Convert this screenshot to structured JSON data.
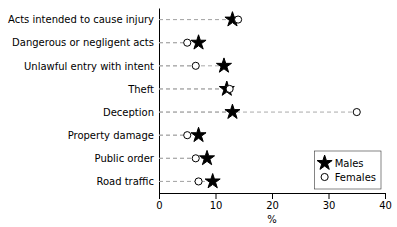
{
  "chart_data": {
    "type": "dot",
    "orientation": "horizontal",
    "categories": [
      "Acts intended to cause injury",
      "Dangerous or negligent acts",
      "Unlawful entry with intent",
      "Theft",
      "Deception",
      "Property damage",
      "Public order",
      "Road traffic"
    ],
    "series": [
      {
        "name": "Males",
        "color": "#000000",
        "marker": "star",
        "values": [
          13.0,
          7.0,
          11.5,
          12.0,
          13.0,
          7.0,
          8.5,
          9.5
        ]
      },
      {
        "name": "Females",
        "color": "#000000",
        "marker": "circle-open",
        "values": [
          14.0,
          5.0,
          6.5,
          12.5,
          35.0,
          5.0,
          6.5,
          7.0
        ]
      }
    ],
    "xlabel": "%",
    "xlim": [
      0,
      40
    ],
    "xticks": [
      0,
      10,
      20,
      30,
      40
    ],
    "line_style": "dashed",
    "legend": "lower right",
    "grid": false
  }
}
